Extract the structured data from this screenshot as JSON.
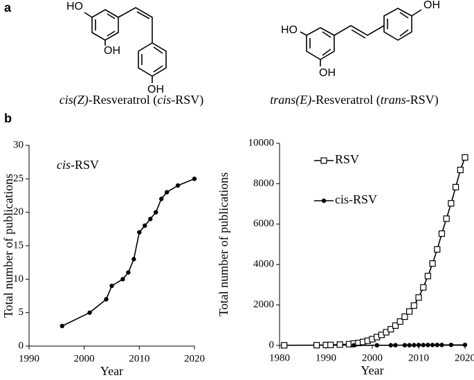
{
  "figure": {
    "panel_a": "a",
    "panel_b": "b",
    "structures": [
      {
        "atoms": [
          "HO",
          "OH",
          "OH"
        ],
        "caption": [
          "cis(Z)",
          "-Resveratrol (",
          "cis",
          "-RSV)"
        ]
      },
      {
        "atoms": [
          "HO",
          "OH",
          "OH"
        ],
        "caption": [
          "trans(E)",
          "-Resveratrol (",
          "trans",
          "-RSV)"
        ]
      }
    ]
  },
  "chart_data": [
    {
      "type": "line",
      "xlabel": "Year",
      "ylabel": "Total number of publications",
      "annotation": [
        "cis",
        "-RSV"
      ],
      "x": [
        1996,
        2001,
        2004,
        2005,
        2007,
        2008,
        2009,
        2010,
        2011,
        2012,
        2013,
        2014,
        2015,
        2017,
        2020
      ],
      "values": [
        3,
        5,
        7,
        9,
        10,
        11,
        13,
        17,
        18,
        19,
        20,
        22,
        23,
        24,
        25
      ],
      "color": "#000000",
      "marker": "circle",
      "xlim": [
        1990,
        2020
      ],
      "xticks": [
        1990,
        2000,
        2010,
        2020
      ],
      "ylim": [
        0,
        30
      ],
      "yticks": [
        0,
        5,
        10,
        15,
        20,
        25,
        30
      ],
      "grid": false
    },
    {
      "type": "line",
      "xlabel": "Year",
      "ylabel": "Total number of publications",
      "legend": "upper left",
      "series": [
        {
          "name": "RSV",
          "color": "#000000",
          "marker": "square-open",
          "x": [
            1981,
            1988,
            1990,
            1991,
            1993,
            1995,
            1996,
            1997,
            1998,
            1999,
            2000,
            2001,
            2002,
            2003,
            2004,
            2005,
            2006,
            2007,
            2008,
            2009,
            2010,
            2011,
            2012,
            2013,
            2014,
            2015,
            2016,
            2017,
            2018,
            2019,
            2020
          ],
          "values": [
            5,
            10,
            20,
            25,
            40,
            60,
            90,
            120,
            170,
            230,
            310,
            410,
            520,
            650,
            800,
            980,
            1180,
            1420,
            1680,
            1970,
            2370,
            2870,
            3430,
            4050,
            4750,
            5530,
            6270,
            7030,
            7830,
            8680,
            9300
          ]
        },
        {
          "name": "cis-RSV",
          "color": "#000000",
          "marker": "circle",
          "x": [
            1996,
            2001,
            2004,
            2005,
            2007,
            2008,
            2009,
            2010,
            2011,
            2012,
            2013,
            2014,
            2015,
            2017,
            2020
          ],
          "values": [
            3,
            5,
            7,
            9,
            10,
            11,
            13,
            17,
            18,
            19,
            20,
            22,
            23,
            24,
            25
          ]
        }
      ],
      "xlim": [
        1980,
        2020
      ],
      "xticks": [
        1980,
        1990,
        2000,
        2010,
        2020
      ],
      "ylim": [
        0,
        10000
      ],
      "yticks": [
        0,
        2000,
        4000,
        6000,
        8000,
        10000
      ],
      "grid": false
    }
  ]
}
